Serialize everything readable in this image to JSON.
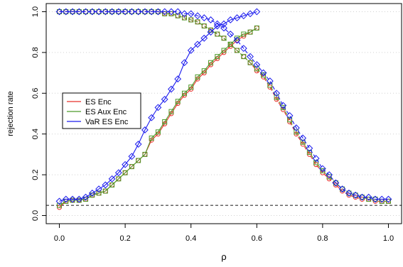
{
  "chart_data": {
    "type": "line",
    "xlabel": "ρ",
    "ylabel": "rejection rate",
    "xlim": [
      -0.04,
      1.04
    ],
    "ylim": [
      -0.04,
      1.04
    ],
    "xticks": [
      0.0,
      0.2,
      0.4,
      0.6,
      0.8,
      1.0
    ],
    "xtick_labels": [
      "0.0",
      "0.2",
      "0.4",
      "0.6",
      "0.8",
      "1.0"
    ],
    "yticks": [
      0.0,
      0.2,
      0.4,
      0.6,
      0.8,
      1.0
    ],
    "ytick_labels": [
      "0.0",
      "0.2",
      "0.4",
      "0.6",
      "0.8",
      "1.0"
    ],
    "grid": true,
    "reference_line": 0.05,
    "legend": {
      "placement": "left",
      "entries": [
        {
          "label": "ES Enc",
          "color": "#e8302a"
        },
        {
          "label": "ES Aux Enc",
          "color": "#4d9a2a"
        },
        {
          "label": "VaR ES Enc",
          "color": "#1a1aee"
        }
      ]
    },
    "x": [
      0.0,
      0.02,
      0.04,
      0.06,
      0.08,
      0.1,
      0.12,
      0.14,
      0.16,
      0.18,
      0.2,
      0.22,
      0.24,
      0.26,
      0.28,
      0.3,
      0.32,
      0.34,
      0.36,
      0.38,
      0.4,
      0.42,
      0.44,
      0.46,
      0.48,
      0.5,
      0.52,
      0.54,
      0.56,
      0.58,
      0.6,
      0.62,
      0.64,
      0.66,
      0.68,
      0.7,
      0.72,
      0.74,
      0.76,
      0.78,
      0.8,
      0.82,
      0.84,
      0.86,
      0.88,
      0.9,
      0.92,
      0.94,
      0.96,
      0.98,
      1.0
    ],
    "series": [
      {
        "name": "ES Enc",
        "color": "#e8302a",
        "marker": "circle",
        "rise": [
          0.04,
          0.07,
          0.075,
          0.075,
          0.08,
          0.1,
          0.11,
          0.12,
          0.15,
          0.18,
          0.21,
          0.24,
          0.27,
          0.3,
          0.37,
          0.4,
          0.45,
          0.5,
          0.55,
          0.59,
          0.62,
          0.67,
          0.7,
          0.74,
          0.77,
          0.8,
          0.83,
          0.86,
          0.88,
          0.9,
          0.92
        ],
        "reject": [
          1.0,
          1.0,
          1.0,
          1.0,
          1.0,
          1.0,
          1.0,
          1.0,
          1.0,
          1.0,
          1.0,
          1.0,
          1.0,
          1.0,
          1.0,
          1.0,
          0.99,
          0.99,
          0.98,
          0.97,
          0.96,
          0.95,
          0.93,
          0.91,
          0.89,
          0.87,
          0.84,
          0.81,
          0.78,
          0.75,
          0.71,
          0.68,
          0.63,
          0.57,
          0.52,
          0.46,
          0.4,
          0.35,
          0.3,
          0.25,
          0.21,
          0.18,
          0.15,
          0.12,
          0.1,
          0.09,
          0.08,
          0.08,
          0.07,
          0.07,
          0.07
        ]
      },
      {
        "name": "ES Aux Enc",
        "color": "#4d9a2a",
        "marker": "square",
        "rise": [
          0.05,
          0.07,
          0.075,
          0.075,
          0.08,
          0.1,
          0.11,
          0.12,
          0.15,
          0.18,
          0.21,
          0.24,
          0.27,
          0.3,
          0.38,
          0.41,
          0.46,
          0.51,
          0.56,
          0.6,
          0.63,
          0.68,
          0.71,
          0.75,
          0.78,
          0.81,
          0.84,
          0.87,
          0.89,
          0.9,
          0.92
        ],
        "reject": [
          1.0,
          1.0,
          1.0,
          1.0,
          1.0,
          1.0,
          1.0,
          1.0,
          1.0,
          1.0,
          1.0,
          1.0,
          1.0,
          1.0,
          1.0,
          1.0,
          0.99,
          0.99,
          0.98,
          0.97,
          0.96,
          0.95,
          0.93,
          0.91,
          0.89,
          0.87,
          0.84,
          0.81,
          0.78,
          0.75,
          0.72,
          0.69,
          0.64,
          0.58,
          0.53,
          0.47,
          0.41,
          0.36,
          0.31,
          0.26,
          0.22,
          0.19,
          0.16,
          0.13,
          0.11,
          0.1,
          0.09,
          0.08,
          0.08,
          0.07,
          0.07
        ]
      },
      {
        "name": "VaR ES Enc",
        "color": "#1a1aee",
        "marker": "diamond",
        "rise": [
          0.07,
          0.08,
          0.08,
          0.08,
          0.09,
          0.11,
          0.13,
          0.15,
          0.18,
          0.21,
          0.25,
          0.29,
          0.35,
          0.42,
          0.48,
          0.53,
          0.57,
          0.62,
          0.67,
          0.75,
          0.81,
          0.84,
          0.87,
          0.9,
          0.93,
          0.94,
          0.96,
          0.97,
          0.98,
          0.99,
          1.0
        ],
        "reject": [
          1.0,
          1.0,
          1.0,
          1.0,
          1.0,
          1.0,
          1.0,
          1.0,
          1.0,
          1.0,
          1.0,
          1.0,
          1.0,
          1.0,
          1.0,
          1.0,
          1.0,
          1.0,
          1.0,
          0.99,
          0.99,
          0.98,
          0.97,
          0.96,
          0.94,
          0.92,
          0.89,
          0.86,
          0.82,
          0.78,
          0.74,
          0.7,
          0.66,
          0.6,
          0.54,
          0.49,
          0.43,
          0.38,
          0.33,
          0.28,
          0.23,
          0.2,
          0.16,
          0.13,
          0.11,
          0.1,
          0.09,
          0.09,
          0.08,
          0.08,
          0.08
        ]
      }
    ]
  }
}
